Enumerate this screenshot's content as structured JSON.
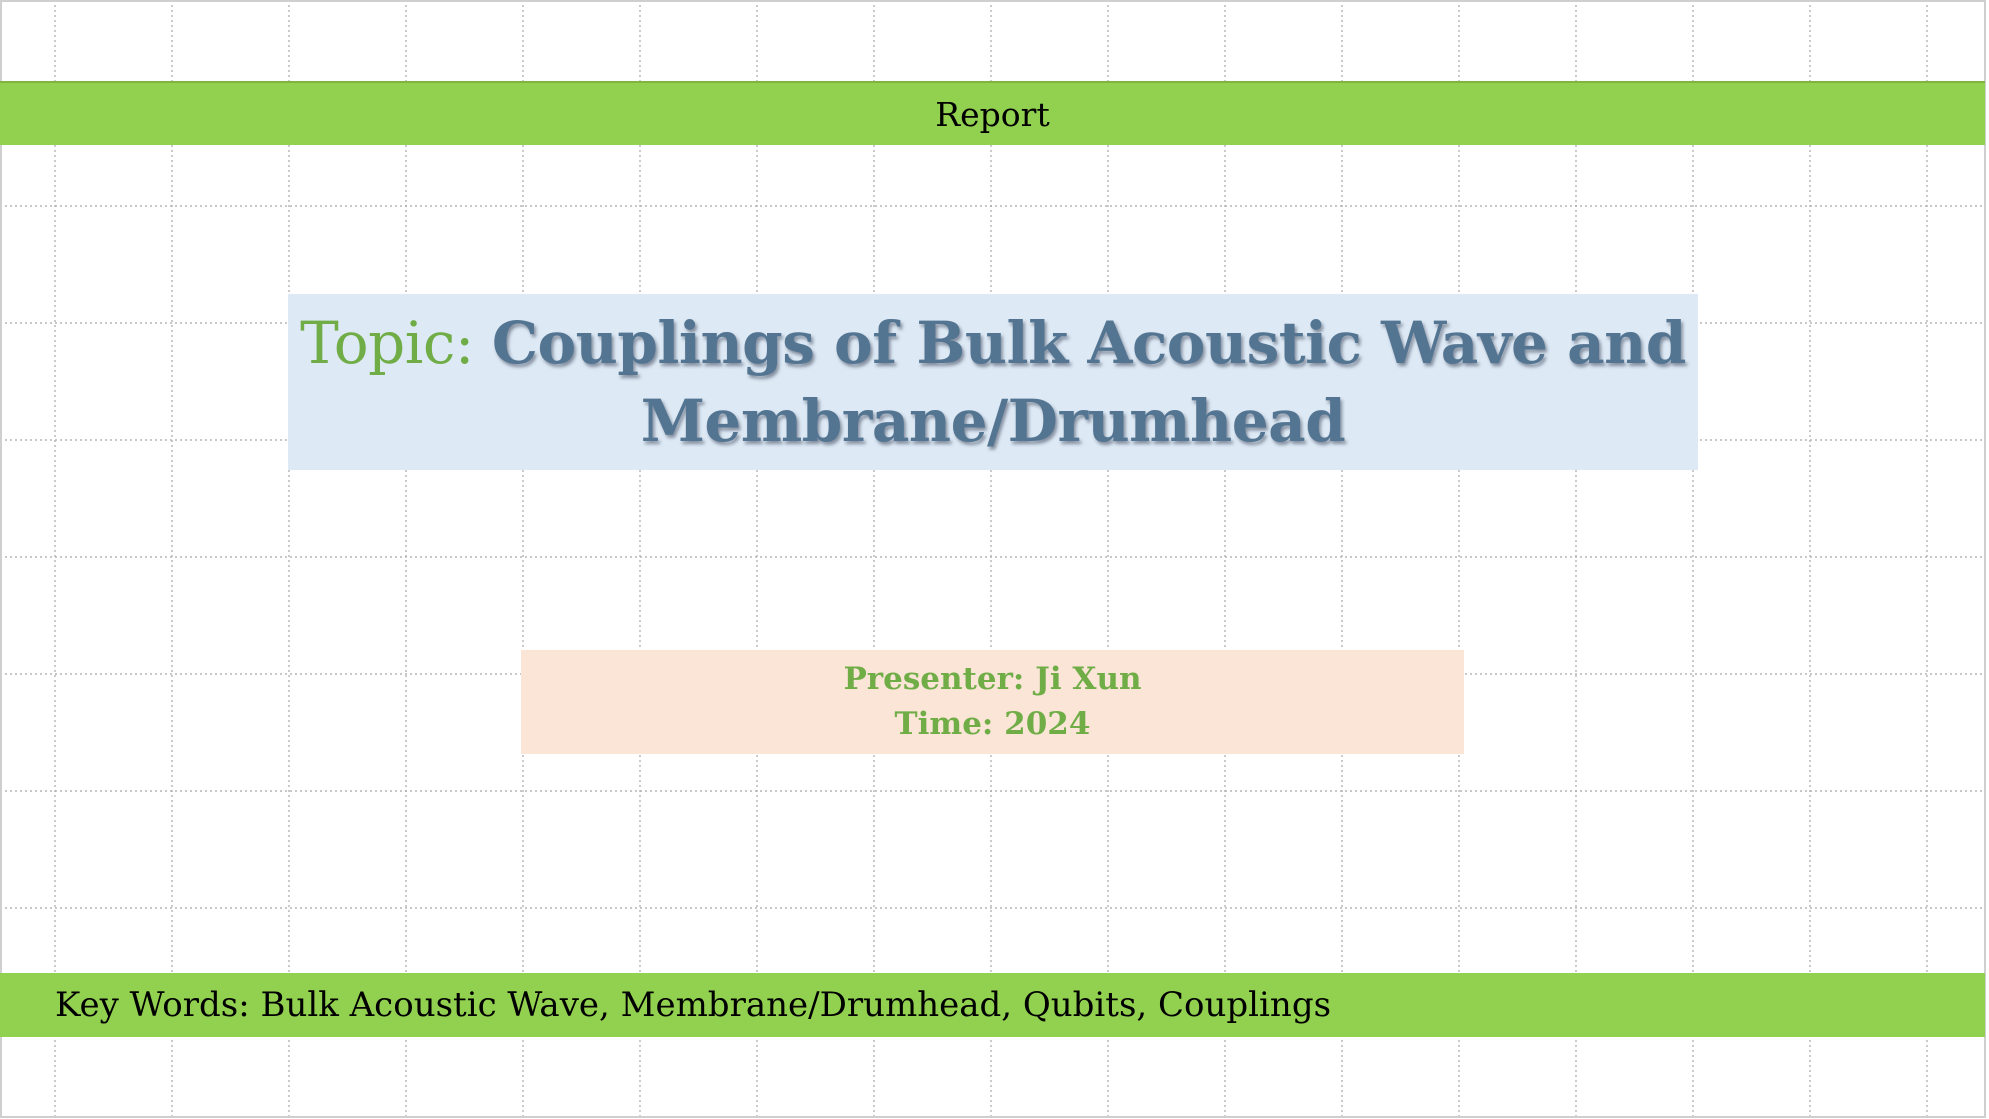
{
  "header": {
    "title": "Report"
  },
  "topic": {
    "prefix": "Topic: ",
    "title": "Couplings of Bulk Acoustic Wave and Membrane/Drumhead"
  },
  "info": {
    "presenter": "Presenter: Ji Xun",
    "time": "Time: 2024"
  },
  "footer": {
    "keywords": "Key Words: Bulk Acoustic Wave, Membrane/Drumhead, Qubits, Couplings"
  },
  "colors": {
    "band_green": "#92d050",
    "title_box": "#dde9f5",
    "title_text": "#547592",
    "accent_green": "#70ad47",
    "presenter_box": "#fbe5d7"
  }
}
